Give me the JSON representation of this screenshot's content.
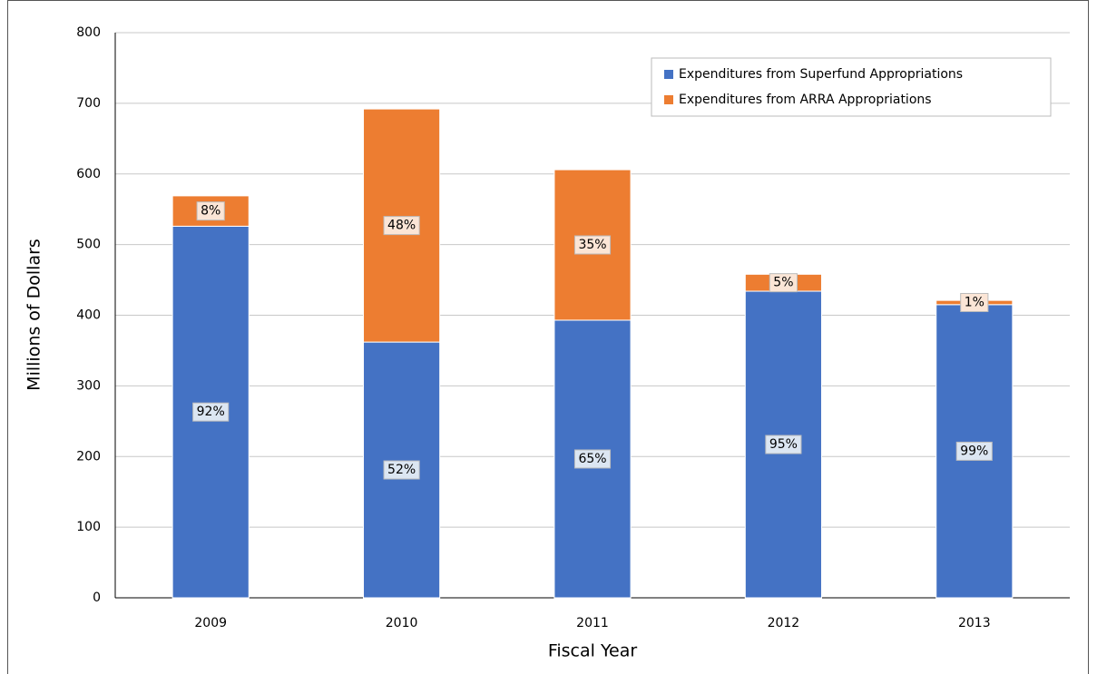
{
  "chart_data": {
    "type": "stacked-bar",
    "xlabel": "Fiscal Year",
    "ylabel": "Millions of Dollars",
    "categories": [
      "2009",
      "2010",
      "2011",
      "2012",
      "2013"
    ],
    "series": [
      {
        "name": "Expenditures from Superfund Appropriations",
        "color": "#4472c4",
        "values": [
          526,
          362,
          393,
          434,
          415
        ],
        "labels": [
          "92%",
          "52%",
          "65%",
          "95%",
          "99%"
        ],
        "label_bg": "#dce6f2"
      },
      {
        "name": "Expenditures from ARRA Appropriations",
        "color": "#ed7d31",
        "values": [
          43,
          330,
          213,
          24,
          6
        ],
        "labels": [
          "8%",
          "48%",
          "35%",
          "5%",
          "1%"
        ],
        "label_bg": "#fbe5d6"
      }
    ],
    "ylim": [
      0,
      800
    ],
    "yticks": [
      0,
      100,
      200,
      300,
      400,
      500,
      600,
      700,
      800
    ],
    "grid": true,
    "legend": "upper right"
  }
}
